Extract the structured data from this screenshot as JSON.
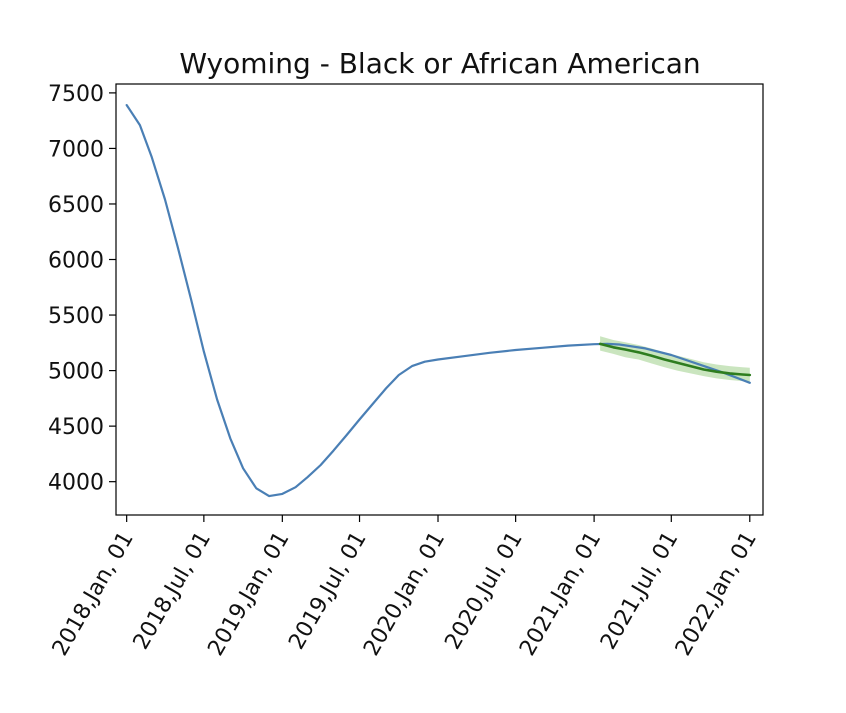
{
  "chart_data": {
    "type": "line",
    "title": "Wyoming - Black or African American",
    "xlabel": "",
    "ylabel": "",
    "ylim": [
      3700,
      7580
    ],
    "xlim": [
      "2017-12-07",
      "2022-02-01"
    ],
    "grid": false,
    "legend": "none",
    "yticks": [
      4000,
      4500,
      5000,
      5500,
      6000,
      6500,
      7000,
      7500
    ],
    "xticks": [
      {
        "date": "2018-01-01",
        "label": "2018,Jan, 01"
      },
      {
        "date": "2018-07-01",
        "label": "2018,Jul, 01"
      },
      {
        "date": "2019-01-01",
        "label": "2019,Jan, 01"
      },
      {
        "date": "2019-07-01",
        "label": "2019,Jul, 01"
      },
      {
        "date": "2020-01-01",
        "label": "2020,Jan, 01"
      },
      {
        "date": "2020-07-01",
        "label": "2020,Jul, 01"
      },
      {
        "date": "2021-01-01",
        "label": "2021,Jan, 01"
      },
      {
        "date": "2021-07-01",
        "label": "2021,Jul, 01"
      },
      {
        "date": "2022-01-01",
        "label": "2022,Jan, 01"
      }
    ],
    "series": [
      {
        "color": "#4a7fb5",
        "points": [
          [
            "2018-01-01",
            7390
          ],
          [
            "2018-02-01",
            7210
          ],
          [
            "2018-03-01",
            6920
          ],
          [
            "2018-04-01",
            6540
          ],
          [
            "2018-05-01",
            6110
          ],
          [
            "2018-06-01",
            5640
          ],
          [
            "2018-07-01",
            5170
          ],
          [
            "2018-08-01",
            4740
          ],
          [
            "2018-09-01",
            4390
          ],
          [
            "2018-10-01",
            4120
          ],
          [
            "2018-11-01",
            3940
          ],
          [
            "2018-12-01",
            3870
          ],
          [
            "2019-01-01",
            3890
          ],
          [
            "2019-02-01",
            3950
          ],
          [
            "2019-03-01",
            4040
          ],
          [
            "2019-04-01",
            4150
          ],
          [
            "2019-05-01",
            4280
          ],
          [
            "2019-06-01",
            4420
          ],
          [
            "2019-07-01",
            4560
          ],
          [
            "2019-08-01",
            4700
          ],
          [
            "2019-09-01",
            4840
          ],
          [
            "2019-10-01",
            4960
          ],
          [
            "2019-11-01",
            5040
          ],
          [
            "2019-12-01",
            5080
          ],
          [
            "2020-01-01",
            5100
          ],
          [
            "2020-03-01",
            5130
          ],
          [
            "2020-05-01",
            5160
          ],
          [
            "2020-07-01",
            5185
          ],
          [
            "2020-09-01",
            5205
          ],
          [
            "2020-11-01",
            5225
          ],
          [
            "2021-01-01",
            5238
          ],
          [
            "2021-02-01",
            5240
          ],
          [
            "2021-03-01",
            5235
          ],
          [
            "2021-05-01",
            5200
          ],
          [
            "2021-07-01",
            5140
          ],
          [
            "2021-09-01",
            5060
          ],
          [
            "2021-11-01",
            4980
          ],
          [
            "2022-01-01",
            4890
          ]
        ]
      },
      {
        "color": "#2e7d1f",
        "band_color": "#9fd08a",
        "points": [
          [
            "2021-01-15",
            5240
          ],
          [
            "2021-02-15",
            5210
          ],
          [
            "2021-03-15",
            5190
          ],
          [
            "2021-04-15",
            5165
          ],
          [
            "2021-05-15",
            5135
          ],
          [
            "2021-06-15",
            5100
          ],
          [
            "2021-07-15",
            5070
          ],
          [
            "2021-08-15",
            5040
          ],
          [
            "2021-09-15",
            5010
          ],
          [
            "2021-10-15",
            4990
          ],
          [
            "2021-11-15",
            4975
          ],
          [
            "2021-12-15",
            4965
          ],
          [
            "2022-01-01",
            4960
          ]
        ],
        "lower": [
          5180,
          5150,
          5120,
          5100,
          5065,
          5030,
          5000,
          4975,
          4950,
          4930,
          4915,
          4905,
          4900
        ],
        "upper": [
          5310,
          5275,
          5255,
          5230,
          5200,
          5165,
          5135,
          5105,
          5075,
          5055,
          5040,
          5030,
          5025
        ]
      }
    ]
  }
}
